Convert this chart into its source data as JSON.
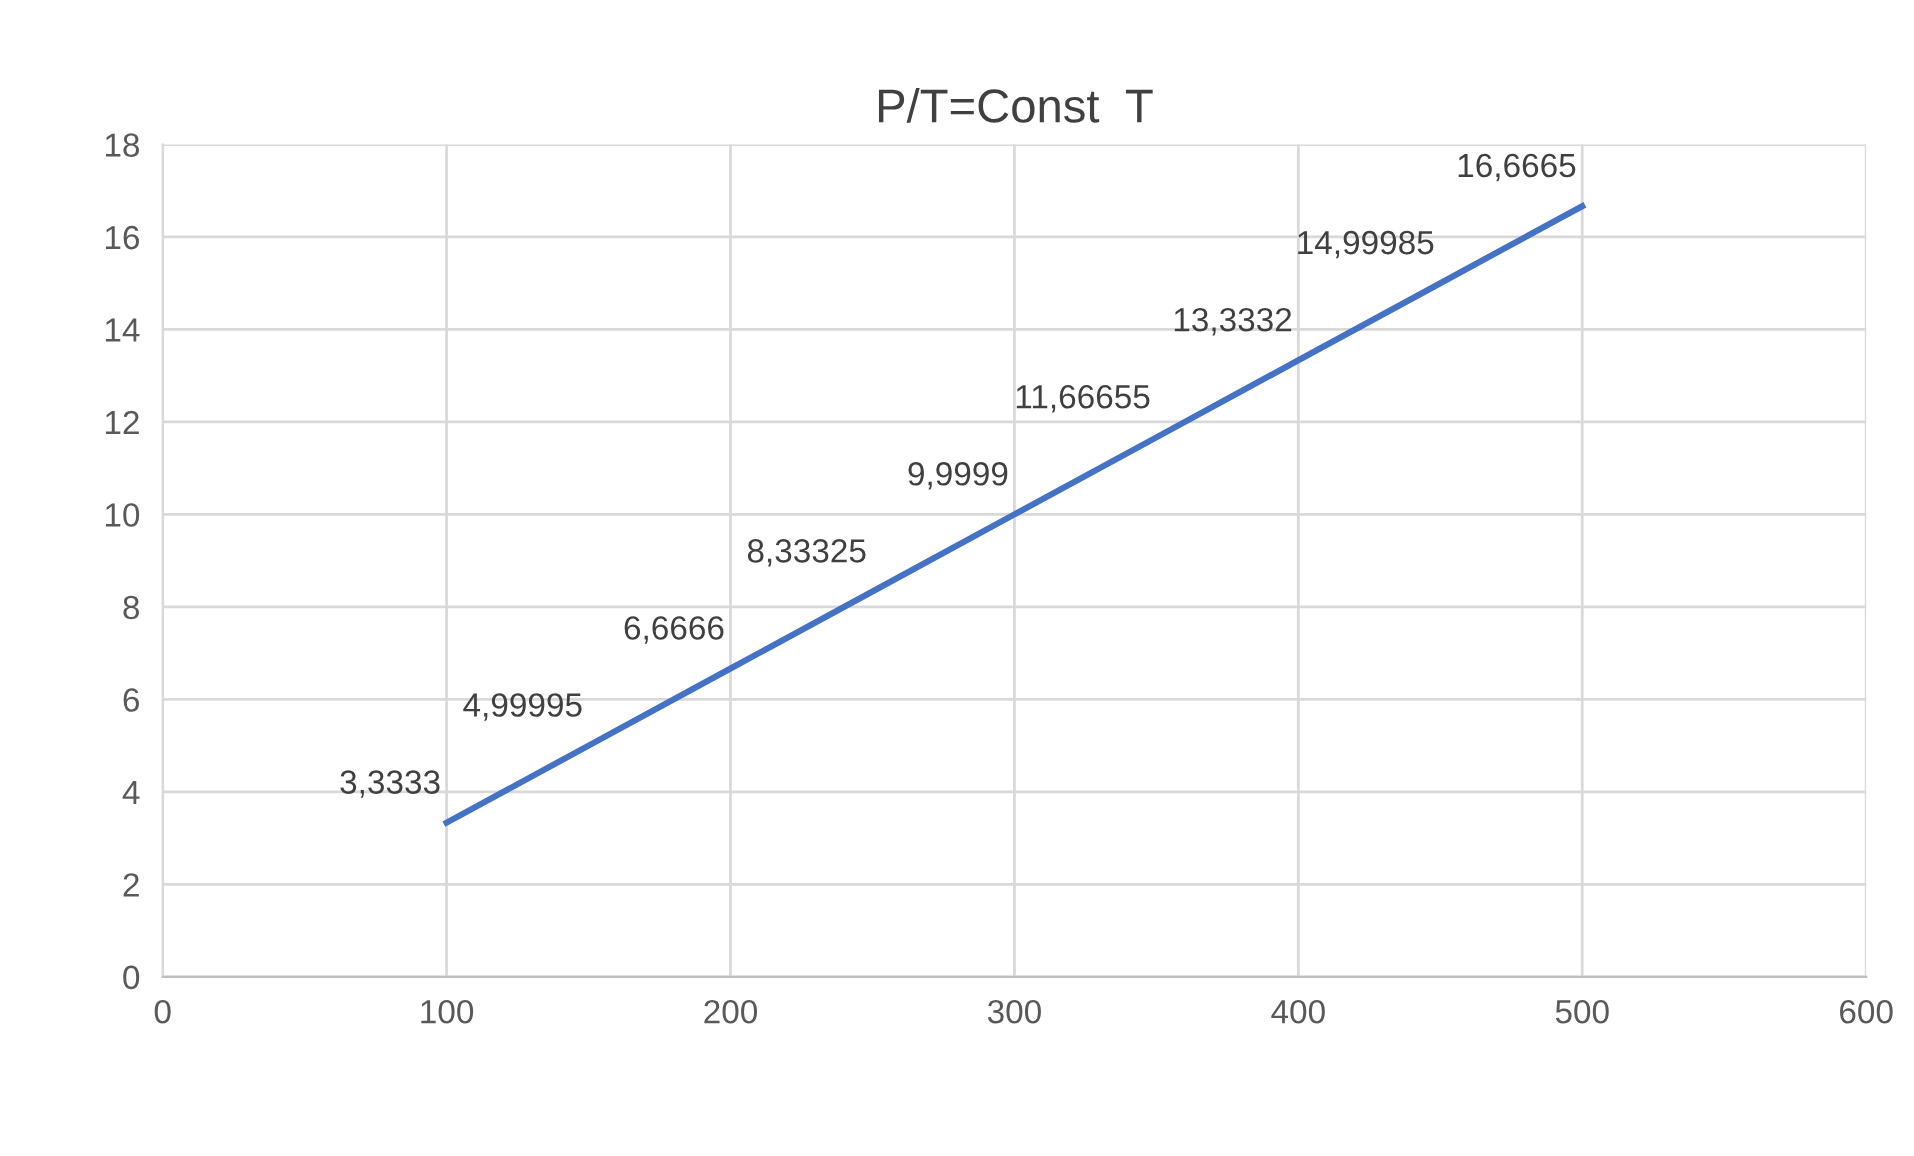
{
  "chart_data": {
    "type": "line",
    "title": "P/T=Const  T",
    "x": [
      100,
      150,
      200,
      250,
      300,
      350,
      400,
      450,
      500
    ],
    "series": [
      {
        "color": "#4472c4",
        "values": [
          3.3333,
          4.99995,
          6.6666,
          8.33325,
          9.9999,
          11.66655,
          13.3332,
          14.99985,
          16.6665
        ],
        "value_labels": [
          "3,3333",
          "4,99995",
          "6,6666",
          "8,33325",
          "9,9999",
          "11,66655",
          "13,3332",
          "14,99985",
          "16,6665"
        ]
      }
    ],
    "xlim": [
      0,
      600
    ],
    "xticks": [
      0,
      100,
      200,
      300,
      400,
      500,
      600
    ],
    "ylim": [
      0,
      18
    ],
    "yticks": [
      0,
      2,
      4,
      6,
      8,
      10,
      12,
      14,
      16,
      18
    ],
    "grid": true,
    "marker": "none",
    "line_style": "solid"
  }
}
